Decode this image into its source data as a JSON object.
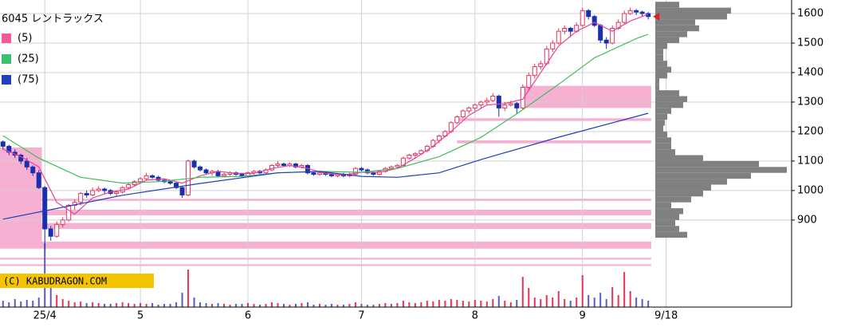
{
  "chart_data": {
    "type": "candlestick",
    "title": "6045 レントラックス",
    "source": "(C) KABUDRAGON.COM",
    "ylim": [
      732,
      1646
    ],
    "yticks": [
      900,
      1000,
      1100,
      1200,
      1300,
      1400,
      1500,
      1600
    ],
    "xlim": [
      -0.5,
      132
    ],
    "xticks": [
      {
        "value": 7,
        "label": "25/4"
      },
      {
        "value": 23,
        "label": "5"
      },
      {
        "value": 41,
        "label": "6"
      },
      {
        "value": 60,
        "label": "7"
      },
      {
        "value": 79,
        "label": "8"
      },
      {
        "value": 97,
        "label": "9"
      },
      {
        "value": 111,
        "label": "9/18"
      }
    ],
    "grid": true,
    "candles": {
      "up_color": "#e8325a",
      "down_color": "#1a2fb0",
      "ohlc": [
        [
          1165,
          1170,
          1140,
          1150
        ],
        [
          1150,
          1155,
          1120,
          1130
        ],
        [
          1130,
          1140,
          1110,
          1120
        ],
        [
          1120,
          1125,
          1090,
          1100
        ],
        [
          1100,
          1110,
          1070,
          1080
        ],
        [
          1080,
          1085,
          1050,
          1060
        ],
        [
          1060,
          1070,
          1005,
          1010
        ],
        [
          1010,
          1015,
          800,
          870
        ],
        [
          870,
          880,
          830,
          845
        ],
        [
          845,
          895,
          840,
          885
        ],
        [
          885,
          910,
          875,
          900
        ],
        [
          900,
          955,
          895,
          950
        ],
        [
          950,
          970,
          935,
          960
        ],
        [
          960,
          995,
          950,
          990
        ],
        [
          990,
          1000,
          975,
          985
        ],
        [
          985,
          1010,
          980,
          1000
        ],
        [
          1000,
          1015,
          995,
          1005
        ],
        [
          1005,
          1010,
          990,
          1000
        ],
        [
          1000,
          1005,
          985,
          990
        ],
        [
          990,
          1000,
          980,
          995
        ],
        [
          995,
          1015,
          990,
          1010
        ],
        [
          1010,
          1025,
          1005,
          1020
        ],
        [
          1020,
          1035,
          1015,
          1030
        ],
        [
          1030,
          1045,
          1025,
          1040
        ],
        [
          1040,
          1060,
          1035,
          1050
        ],
        [
          1050,
          1055,
          1040,
          1045
        ],
        [
          1045,
          1050,
          1030,
          1035
        ],
        [
          1035,
          1040,
          1025,
          1030
        ],
        [
          1030,
          1035,
          1020,
          1025
        ],
        [
          1025,
          1030,
          1005,
          1010
        ],
        [
          1010,
          1015,
          975,
          985
        ],
        [
          985,
          1105,
          980,
          1100
        ],
        [
          1100,
          1105,
          1075,
          1080
        ],
        [
          1080,
          1085,
          1065,
          1070
        ],
        [
          1070,
          1075,
          1055,
          1060
        ],
        [
          1060,
          1070,
          1050,
          1065
        ],
        [
          1065,
          1070,
          1045,
          1050
        ],
        [
          1050,
          1060,
          1045,
          1055
        ],
        [
          1055,
          1065,
          1050,
          1060
        ],
        [
          1060,
          1065,
          1050,
          1055
        ],
        [
          1055,
          1060,
          1045,
          1050
        ],
        [
          1050,
          1065,
          1045,
          1060
        ],
        [
          1060,
          1070,
          1055,
          1065
        ],
        [
          1065,
          1070,
          1055,
          1060
        ],
        [
          1060,
          1075,
          1055,
          1070
        ],
        [
          1070,
          1090,
          1065,
          1085
        ],
        [
          1085,
          1100,
          1080,
          1090
        ],
        [
          1090,
          1095,
          1080,
          1085
        ],
        [
          1085,
          1095,
          1080,
          1090
        ],
        [
          1090,
          1095,
          1075,
          1080
        ],
        [
          1080,
          1090,
          1075,
          1085
        ],
        [
          1085,
          1090,
          1055,
          1060
        ],
        [
          1060,
          1065,
          1050,
          1055
        ],
        [
          1055,
          1065,
          1050,
          1060
        ],
        [
          1060,
          1065,
          1050,
          1055
        ],
        [
          1055,
          1060,
          1045,
          1050
        ],
        [
          1050,
          1060,
          1045,
          1055
        ],
        [
          1055,
          1060,
          1045,
          1050
        ],
        [
          1050,
          1060,
          1045,
          1055
        ],
        [
          1055,
          1080,
          1050,
          1075
        ],
        [
          1075,
          1080,
          1065,
          1070
        ],
        [
          1070,
          1075,
          1055,
          1060
        ],
        [
          1060,
          1065,
          1050,
          1055
        ],
        [
          1055,
          1070,
          1050,
          1065
        ],
        [
          1065,
          1080,
          1060,
          1075
        ],
        [
          1075,
          1085,
          1070,
          1080
        ],
        [
          1080,
          1090,
          1075,
          1085
        ],
        [
          1085,
          1115,
          1080,
          1110
        ],
        [
          1110,
          1125,
          1105,
          1120
        ],
        [
          1120,
          1130,
          1110,
          1125
        ],
        [
          1125,
          1140,
          1120,
          1135
        ],
        [
          1135,
          1155,
          1130,
          1150
        ],
        [
          1150,
          1175,
          1145,
          1170
        ],
        [
          1170,
          1190,
          1160,
          1185
        ],
        [
          1185,
          1205,
          1180,
          1200
        ],
        [
          1200,
          1235,
          1195,
          1230
        ],
        [
          1230,
          1255,
          1225,
          1250
        ],
        [
          1250,
          1275,
          1245,
          1270
        ],
        [
          1270,
          1285,
          1260,
          1280
        ],
        [
          1280,
          1295,
          1270,
          1290
        ],
        [
          1290,
          1305,
          1280,
          1300
        ],
        [
          1300,
          1315,
          1290,
          1305
        ],
        [
          1305,
          1330,
          1300,
          1320
        ],
        [
          1320,
          1325,
          1250,
          1280
        ],
        [
          1280,
          1300,
          1270,
          1290
        ],
        [
          1290,
          1305,
          1285,
          1295
        ],
        [
          1295,
          1300,
          1260,
          1280
        ],
        [
          1280,
          1360,
          1275,
          1350
        ],
        [
          1350,
          1400,
          1340,
          1390
        ],
        [
          1390,
          1430,
          1380,
          1420
        ],
        [
          1420,
          1440,
          1410,
          1430
        ],
        [
          1430,
          1490,
          1425,
          1480
        ],
        [
          1480,
          1510,
          1470,
          1500
        ],
        [
          1500,
          1550,
          1495,
          1540
        ],
        [
          1540,
          1560,
          1530,
          1550
        ],
        [
          1550,
          1555,
          1520,
          1540
        ],
        [
          1540,
          1570,
          1535,
          1560
        ],
        [
          1560,
          1620,
          1555,
          1610
        ],
        [
          1610,
          1615,
          1580,
          1590
        ],
        [
          1590,
          1595,
          1555,
          1560
        ],
        [
          1560,
          1565,
          1500,
          1510
        ],
        [
          1510,
          1520,
          1480,
          1500
        ],
        [
          1500,
          1560,
          1495,
          1550
        ],
        [
          1550,
          1580,
          1545,
          1570
        ],
        [
          1570,
          1610,
          1565,
          1600
        ],
        [
          1600,
          1620,
          1595,
          1610
        ],
        [
          1610,
          1615,
          1595,
          1605
        ],
        [
          1605,
          1610,
          1590,
          1600
        ],
        [
          1600,
          1605,
          1580,
          1590
        ]
      ]
    },
    "volume": {
      "vlim": [
        0,
        85
      ],
      "values": [
        8,
        6,
        10,
        7,
        9,
        8,
        12,
        80,
        30,
        15,
        10,
        8,
        6,
        7,
        5,
        6,
        5,
        4,
        4,
        5,
        6,
        5,
        4,
        5,
        4,
        5,
        3,
        4,
        4,
        6,
        18,
        47,
        12,
        6,
        5,
        4,
        5,
        4,
        3,
        4,
        4,
        5,
        4,
        3,
        4,
        6,
        5,
        4,
        3,
        4,
        5,
        6,
        3,
        4,
        3,
        4,
        3,
        3,
        4,
        6,
        4,
        3,
        3,
        4,
        5,
        4,
        5,
        8,
        6,
        5,
        6,
        8,
        7,
        9,
        8,
        10,
        9,
        8,
        7,
        9,
        8,
        7,
        10,
        14,
        8,
        6,
        9,
        38,
        24,
        12,
        10,
        15,
        12,
        20,
        10,
        8,
        12,
        40,
        15,
        12,
        18,
        10,
        25,
        15,
        44,
        20,
        12,
        10,
        8
      ]
    },
    "series": [
      {
        "name": "(5)",
        "color": "#e8439a",
        "legend_color": "#f05aa0",
        "x": [
          0,
          3,
          6,
          9,
          12,
          15,
          18,
          21,
          24,
          27,
          30,
          33,
          36,
          39,
          42,
          45,
          48,
          51,
          54,
          57,
          60,
          63,
          66,
          69,
          72,
          75,
          78,
          81,
          84,
          87,
          90,
          93,
          96,
          99,
          102,
          105,
          108
        ],
        "values": [
          1140,
          1115,
          1080,
          960,
          920,
          975,
          995,
          1005,
          1035,
          1040,
          1025,
          1050,
          1065,
          1058,
          1058,
          1075,
          1085,
          1075,
          1058,
          1053,
          1062,
          1062,
          1075,
          1110,
          1150,
          1200,
          1255,
          1290,
          1295,
          1310,
          1400,
          1490,
          1540,
          1570,
          1540,
          1575,
          1598
        ]
      },
      {
        "name": "(25)",
        "color": "#3cbf5a",
        "legend_color": "#3cc070",
        "x": [
          0,
          6,
          13,
          20,
          26,
          33,
          40,
          46,
          53,
          60,
          66,
          73,
          80,
          86,
          93,
          99,
          106,
          108
        ],
        "values": [
          1186,
          1110,
          1045,
          1025,
          1030,
          1045,
          1048,
          1060,
          1065,
          1062,
          1075,
          1115,
          1180,
          1260,
          1360,
          1450,
          1515,
          1530
        ]
      },
      {
        "name": "(75)",
        "color": "#1a3fbf",
        "legend_color": "#2040c0",
        "x": [
          0,
          8,
          20,
          33,
          46,
          53,
          60,
          66,
          73,
          80,
          93,
          108
        ],
        "values": [
          903,
          935,
          984,
          1024,
          1060,
          1065,
          1048,
          1045,
          1060,
          1105,
          1181,
          1262
        ]
      }
    ],
    "zones": {
      "color": "#f6b0d2",
      "bands": [
        [
          808,
          1146,
          -0.5,
          6.5
        ],
        [
          1280,
          1355,
          87,
          108.5
        ],
        [
          1236,
          1245,
          76,
          108.5
        ],
        [
          1160,
          1170,
          76,
          108.5
        ],
        [
          965,
          972,
          -0.5,
          108.5
        ],
        [
          916,
          935,
          -0.5,
          108.5
        ],
        [
          870,
          890,
          -0.5,
          108.5
        ],
        [
          803,
          827,
          -0.5,
          108.5
        ],
        [
          766,
          772,
          -0.5,
          108.5
        ],
        [
          744,
          750,
          -0.5,
          108.5
        ]
      ]
    },
    "profile": {
      "color": "#808080",
      "plim": [
        0,
        170
      ],
      "step": 20,
      "levels": [
        840,
        860,
        880,
        900,
        920,
        940,
        960,
        980,
        1000,
        1020,
        1040,
        1060,
        1080,
        1100,
        1120,
        1140,
        1160,
        1180,
        1200,
        1220,
        1240,
        1260,
        1280,
        1300,
        1320,
        1340,
        1360,
        1380,
        1400,
        1420,
        1440,
        1460,
        1480,
        1500,
        1520,
        1540,
        1560,
        1580,
        1600,
        1620
      ],
      "values": [
        40,
        30,
        25,
        30,
        35,
        20,
        45,
        60,
        70,
        90,
        120,
        165,
        130,
        60,
        25,
        20,
        20,
        15,
        10,
        12,
        15,
        20,
        35,
        40,
        30,
        5,
        5,
        15,
        20,
        15,
        10,
        10,
        15,
        30,
        40,
        55,
        50,
        90,
        95,
        30
      ]
    },
    "last_marker_color": "#e02020"
  }
}
